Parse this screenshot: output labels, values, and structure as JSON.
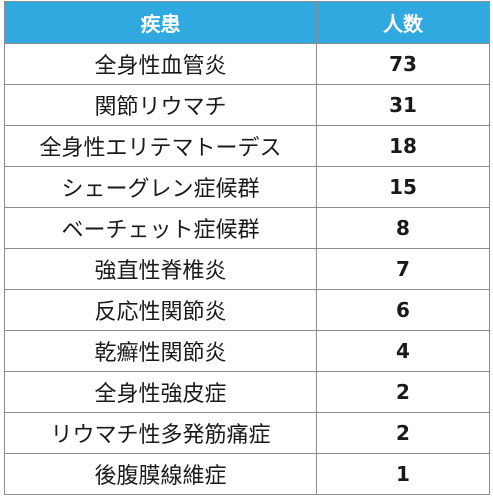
{
  "chart_data": {
    "type": "table",
    "columns": [
      "疾患",
      "人数"
    ],
    "rows": [
      [
        "全身性血管炎",
        73
      ],
      [
        "関節リウマチ",
        31
      ],
      [
        "全身性エリテマトーデス",
        18
      ],
      [
        "シェーグレン症候群",
        15
      ],
      [
        "ベーチェット症候群",
        8
      ],
      [
        "強直性脊椎炎",
        7
      ],
      [
        "反応性関節炎",
        6
      ],
      [
        "乾癬性関節炎",
        4
      ],
      [
        "全身性強皮症",
        2
      ],
      [
        "リウマチ性多発筋痛症",
        2
      ],
      [
        "後腹膜線維症",
        1
      ]
    ]
  },
  "colors": {
    "header_bg": "#2FA9DF",
    "header_text": "#FFFFFF",
    "border": "#8C8C8C",
    "text": "#1A1A1A"
  }
}
